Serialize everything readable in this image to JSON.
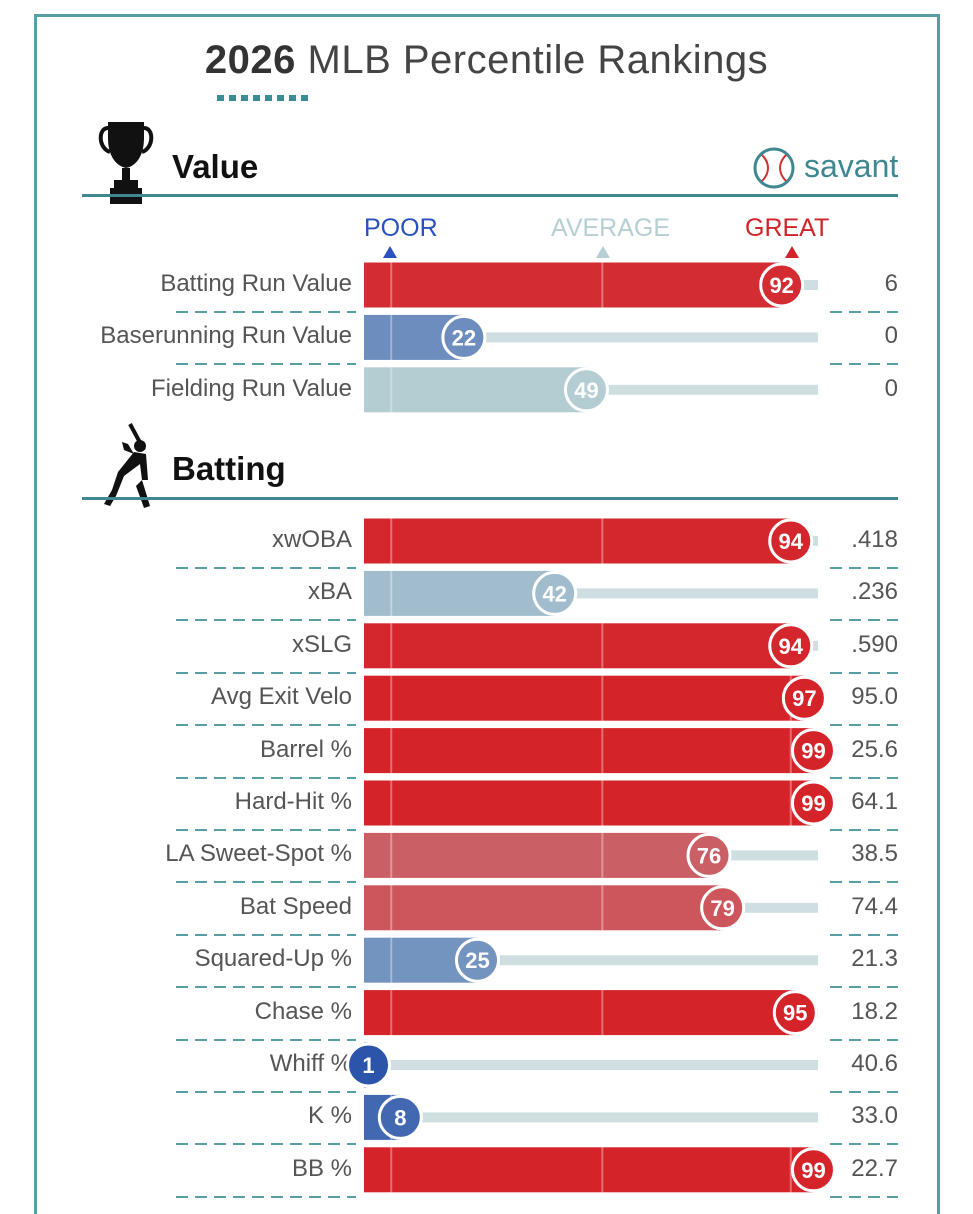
{
  "title": {
    "year": "2026",
    "text": "MLB Percentile Rankings"
  },
  "brand": {
    "name": "savant"
  },
  "scale": {
    "poor": "POOR",
    "average": "AVERAGE",
    "great": "GREAT"
  },
  "chart_data": {
    "type": "bar",
    "title": "2026 MLB Percentile Rankings",
    "xlim": [
      0,
      100
    ],
    "sections": [
      {
        "name": "Value",
        "rows": [
          {
            "label": "Batting Run Value",
            "percentile": 92,
            "value": "6"
          },
          {
            "label": "Baserunning Run Value",
            "percentile": 22,
            "value": "0"
          },
          {
            "label": "Fielding Run Value",
            "percentile": 49,
            "value": "0"
          }
        ]
      },
      {
        "name": "Batting",
        "rows": [
          {
            "label": "xwOBA",
            "percentile": 94,
            "value": ".418"
          },
          {
            "label": "xBA",
            "percentile": 42,
            "value": ".236"
          },
          {
            "label": "xSLG",
            "percentile": 94,
            "value": ".590"
          },
          {
            "label": "Avg Exit Velo",
            "percentile": 97,
            "value": "95.0"
          },
          {
            "label": "Barrel %",
            "percentile": 99,
            "value": "25.6"
          },
          {
            "label": "Hard-Hit %",
            "percentile": 99,
            "value": "64.1"
          },
          {
            "label": "LA Sweet-Spot %",
            "percentile": 76,
            "value": "38.5"
          },
          {
            "label": "Bat Speed",
            "percentile": 79,
            "value": "74.4"
          },
          {
            "label": "Squared-Up %",
            "percentile": 25,
            "value": "21.3"
          },
          {
            "label": "Chase %",
            "percentile": 95,
            "value": "18.2"
          },
          {
            "label": "Whiff %",
            "percentile": 1,
            "value": "40.6"
          },
          {
            "label": "K %",
            "percentile": 8,
            "value": "33.0"
          },
          {
            "label": "BB %",
            "percentile": 99,
            "value": "22.7"
          }
        ]
      }
    ]
  }
}
